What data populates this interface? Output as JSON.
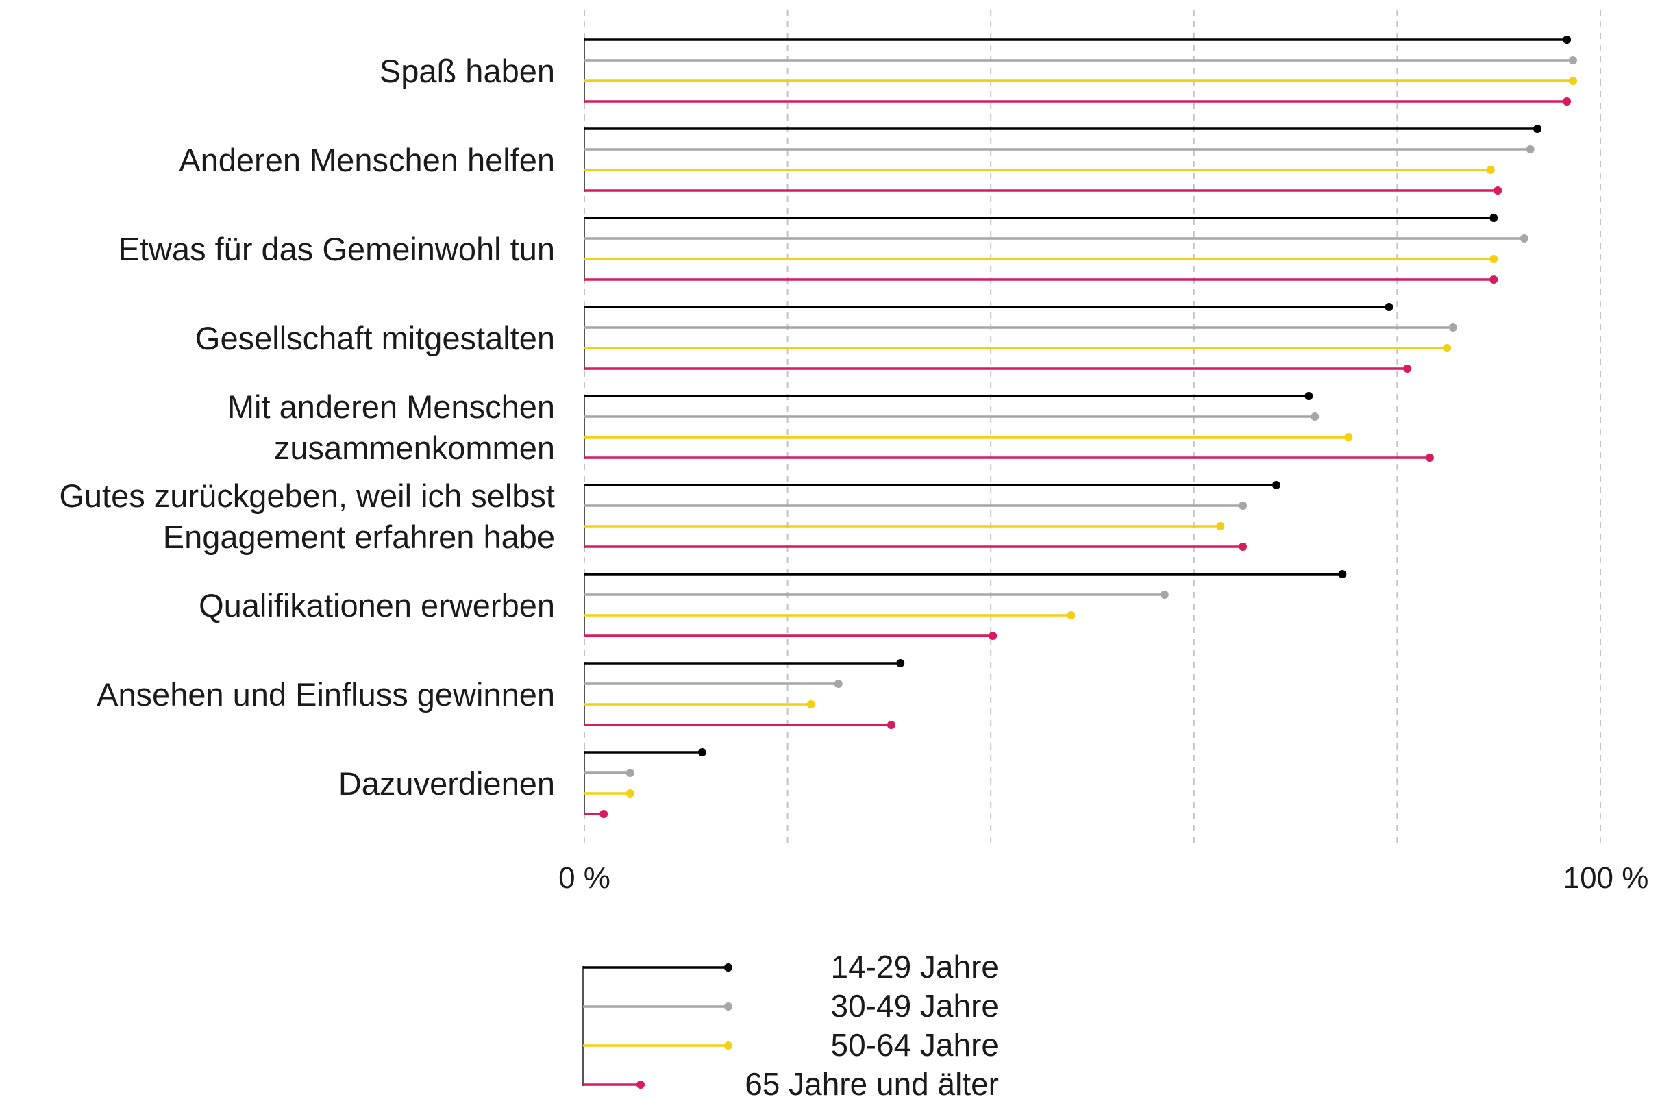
{
  "chart_data": {
    "type": "bar",
    "style": "lollipop-horizontal",
    "categories": [
      "Spaß haben",
      "Anderen Menschen helfen",
      "Etwas für das Gemeinwohl tun",
      "Gesellschaft mitgestalten",
      "Mit anderen Menschen zusammenkommen",
      "Gutes zurückgeben, weil ich selbst Engagement erfahren habe",
      "Qualifikationen erwerben",
      "Ansehen und Einfluss gewinnen",
      "Dazuverdienen"
    ],
    "category_lines": [
      [
        "Spaß haben"
      ],
      [
        "Anderen Menschen helfen"
      ],
      [
        "Etwas für das Gemeinwohl tun"
      ],
      [
        "Gesellschaft mitgestalten"
      ],
      [
        "Mit anderen Menschen",
        "zusammenkommen"
      ],
      [
        "Gutes zurückgeben, weil ich selbst",
        "Engagement erfahren habe"
      ],
      [
        "Qualifikationen erwerben"
      ],
      [
        "Ansehen und Einfluss gewinnen"
      ],
      [
        "Dazuverdienen"
      ]
    ],
    "series": [
      {
        "name": "14-29 Jahre",
        "color": "#000000",
        "values": [
          96.7,
          93.8,
          89.5,
          79.2,
          71.3,
          68.1,
          74.6,
          31.1,
          11.6
        ]
      },
      {
        "name": "30-49 Jahre",
        "color": "#a6a6a6",
        "values": [
          97.3,
          93.1,
          92.5,
          85.5,
          71.9,
          64.8,
          57.1,
          25.0,
          4.5
        ]
      },
      {
        "name": "50-64 Jahre",
        "color": "#f5d010",
        "values": [
          97.3,
          89.2,
          89.5,
          84.9,
          75.2,
          62.6,
          47.9,
          22.3,
          4.5
        ]
      },
      {
        "name": "65 Jahre und älter",
        "color": "#d81b60",
        "values": [
          96.7,
          89.9,
          89.5,
          81.0,
          83.2,
          64.8,
          40.2,
          30.2,
          1.9
        ]
      }
    ],
    "xlim": [
      0,
      100
    ],
    "x_tick_labels": {
      "min": "0 %",
      "max": "100 %"
    },
    "grid": true,
    "legend_position": "bottom",
    "title": "",
    "xlabel": "",
    "ylabel": ""
  }
}
